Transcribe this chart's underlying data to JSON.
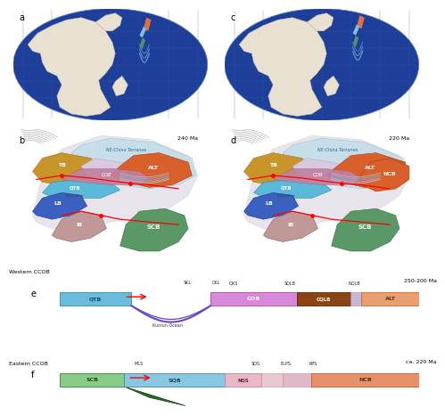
{
  "bg_color": "#ffffff",
  "ocean_color": "#1e3f99",
  "land_color": "#e8e0d0",
  "label_fs": 6,
  "small_fs": 4.5,
  "tiny_fs": 3.8,
  "time_labels": {
    "a": "240 Ma",
    "c": "220 Ma",
    "b": "240 Ma",
    "d": "220 Ma",
    "e": "250-200 Ma",
    "f": "ca. 220 Ma"
  },
  "colors": {
    "TB": "#c8952a",
    "ALT": "#d95f2b",
    "QOB": "#c080a0",
    "QTB": "#5ab8d8",
    "LB": "#3a60c0",
    "IB": "#c09898",
    "SCB": "#5a9868",
    "NCB": "#d95f2b",
    "NE_China": "#a8d8e8",
    "MLS": "#c8c0d8",
    "suture_bg": "#d8d0e0",
    "QTB_e": "#6abcdc",
    "GOB_e": "#d888d8",
    "CQLB_e": "#8b4513",
    "ALT_e": "#e8a070",
    "SCB_f": "#88cc88",
    "SQB_f": "#88c8e0",
    "NQS_f": "#e8b8c8",
    "NCB_f": "#e8906a",
    "kunlun_arc": "#6644cc"
  }
}
